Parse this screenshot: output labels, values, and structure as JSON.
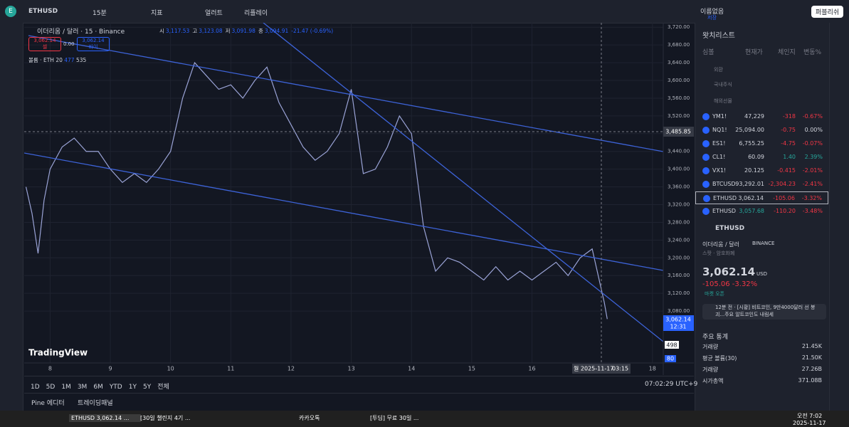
{
  "toolbar": {
    "symbol": "ETHUSD",
    "interval": "15분",
    "items": [
      "지표",
      "얼러트",
      "리플레이"
    ],
    "layout_name": "이름없음",
    "save": "저장",
    "publish": "퍼블리쉬"
  },
  "legend": {
    "title": "이더리움 / 달러 · 15 · Binance",
    "ohlc": [
      [
        "시",
        "3,117.53"
      ],
      [
        "고",
        "3,123.08"
      ],
      [
        "저",
        "3,091.98"
      ],
      [
        "종",
        "3,094.91"
      ]
    ],
    "change": "-21.47 (-0.69%)",
    "sell_price": "3,062.14",
    "sell": "셀",
    "spread": "0.00",
    "buy_price": "3,062.14",
    "buy": "바이",
    "volume_label": "볼륨 · ETH",
    "volume_values": [
      "20",
      "477",
      "535"
    ]
  },
  "chart_data": {
    "type": "line",
    "x": [
      7.6,
      7.7,
      7.8,
      7.9,
      8.0,
      8.2,
      8.4,
      8.6,
      8.8,
      9.0,
      9.2,
      9.4,
      9.6,
      9.8,
      10.0,
      10.2,
      10.4,
      10.6,
      10.8,
      11.0,
      11.2,
      11.4,
      11.6,
      11.8,
      12.0,
      12.2,
      12.4,
      12.6,
      12.8,
      13.0,
      13.2,
      13.4,
      13.6,
      13.8,
      14.0,
      14.2,
      14.4,
      14.6,
      14.8,
      15.0,
      15.2,
      15.4,
      15.6,
      15.8,
      16.0,
      16.2,
      16.4,
      16.6,
      16.8,
      17.0,
      17.2,
      17.25
    ],
    "series": [
      {
        "name": "ETHUSD",
        "color": "#9aa3d6",
        "values": [
          3360,
          3300,
          3210,
          3330,
          3400,
          3450,
          3470,
          3440,
          3440,
          3400,
          3370,
          3390,
          3370,
          3400,
          3440,
          3560,
          3640,
          3610,
          3580,
          3590,
          3560,
          3600,
          3630,
          3550,
          3500,
          3450,
          3420,
          3440,
          3480,
          3580,
          3390,
          3400,
          3450,
          3520,
          3480,
          3270,
          3170,
          3200,
          3190,
          3170,
          3150,
          3180,
          3150,
          3170,
          3150,
          3170,
          3190,
          3160,
          3200,
          3220,
          3100,
          3062
        ]
      }
    ],
    "xlim": [
      7.57,
      18.18
    ],
    "xticks": [
      8,
      9,
      10,
      11,
      12,
      13,
      14,
      15,
      16,
      18
    ],
    "ylim": [
      2963,
      3730
    ],
    "yticks": [
      {
        "value": 3080,
        "label": "3,080.00"
      },
      {
        "value": 3120,
        "label": "3,120.00"
      },
      {
        "value": 3160,
        "label": "3,160.00"
      },
      {
        "value": 3200,
        "label": "3,200.00"
      },
      {
        "value": 3240,
        "label": "3,240.00"
      },
      {
        "value": 3280,
        "label": "3,280.00"
      },
      {
        "value": 3320,
        "label": "3,320.00"
      },
      {
        "value": 3360,
        "label": "3,360.00"
      },
      {
        "value": 3400,
        "label": "3,400.00"
      },
      {
        "value": 3440,
        "label": "3,440.00"
      },
      {
        "value": 3480,
        "label": "3,480.00"
      },
      {
        "value": 3520,
        "label": "3,520.00"
      },
      {
        "value": 3560,
        "label": "3,560.00"
      },
      {
        "value": 3600,
        "label": "3,600.00"
      },
      {
        "value": 3640,
        "label": "3,640.00"
      },
      {
        "value": 3680,
        "label": "3,680.00"
      },
      {
        "value": 3720,
        "label": "3,720.00"
      }
    ],
    "crosshair_price": "3,485.85",
    "last_price": "3,062.14",
    "countdown": "12:31",
    "volume_tag": "498",
    "volume_tag2": "80",
    "crosshair_date": "월 2025-11-17",
    "crosshair_time": "03:15",
    "watermark": "TradingView"
  },
  "bottom_bar": {
    "ranges": [
      "1D",
      "5D",
      "1M",
      "3M",
      "6M",
      "YTD",
      "1Y",
      "5Y",
      "전체"
    ],
    "clock": "07:02:29 UTC+9",
    "tabs": [
      "Pine 에디터",
      "트레이딩패널"
    ]
  },
  "watchlist": {
    "title": "왓치리스트",
    "columns": [
      "심볼",
      "현재가",
      "체인지",
      "변동%"
    ],
    "groups": [
      "외환",
      "국내주식",
      "해외선물"
    ],
    "rows": [
      [
        "YM1!",
        "47,229",
        "-318",
        "-0.67%"
      ],
      [
        "NQ1!",
        "25,094.00",
        "-0.75",
        "0.00%"
      ],
      [
        "ES1!",
        "6,755.25",
        "-4.75",
        "-0.07%"
      ],
      [
        "CL1!",
        "60.09",
        "1.40",
        "2.39%"
      ],
      [
        "VX1!",
        "20.125",
        "-0.415",
        "-2.01%"
      ],
      [
        "BTCUSD",
        "93,292.01",
        "-2,304.23",
        "-2.41%"
      ],
      [
        "ETHUSD",
        "3,062.14",
        "-105.06",
        "-3.32%"
      ],
      [
        "ETHUSD",
        "3,057.68",
        "-110.20",
        "-3.48%"
      ]
    ]
  },
  "details": {
    "symbol": "ETHUSD",
    "name": "이더리움 / 달러",
    "exchange": "BINANCE",
    "kind": "스팟 · 암호화폐",
    "price": "3,062.14",
    "currency": "USD",
    "change": "-105.06",
    "change_pct": "-3.32%",
    "status": "마켓 오픈",
    "news": "12분 전 · [시황] 비트코인, 9만4000달러 선 붕괴...주요 알트코인도 내림세",
    "stats_title": "주요 통계",
    "stats": [
      [
        "거래량",
        "21.45K"
      ],
      [
        "평균 볼륨(30)",
        "21.50K"
      ],
      [
        "거래량",
        "27.26B"
      ],
      [
        "시가총액",
        "371.08B"
      ]
    ]
  },
  "taskbar": {
    "apps": [
      "ETHUSD 3,062.14 ...",
      "[30일 챌린지 4기 ...",
      "카카오톡",
      "[투딤] 무료 30일 ..."
    ],
    "time": "오전 7:02",
    "date": "2025-11-17"
  }
}
